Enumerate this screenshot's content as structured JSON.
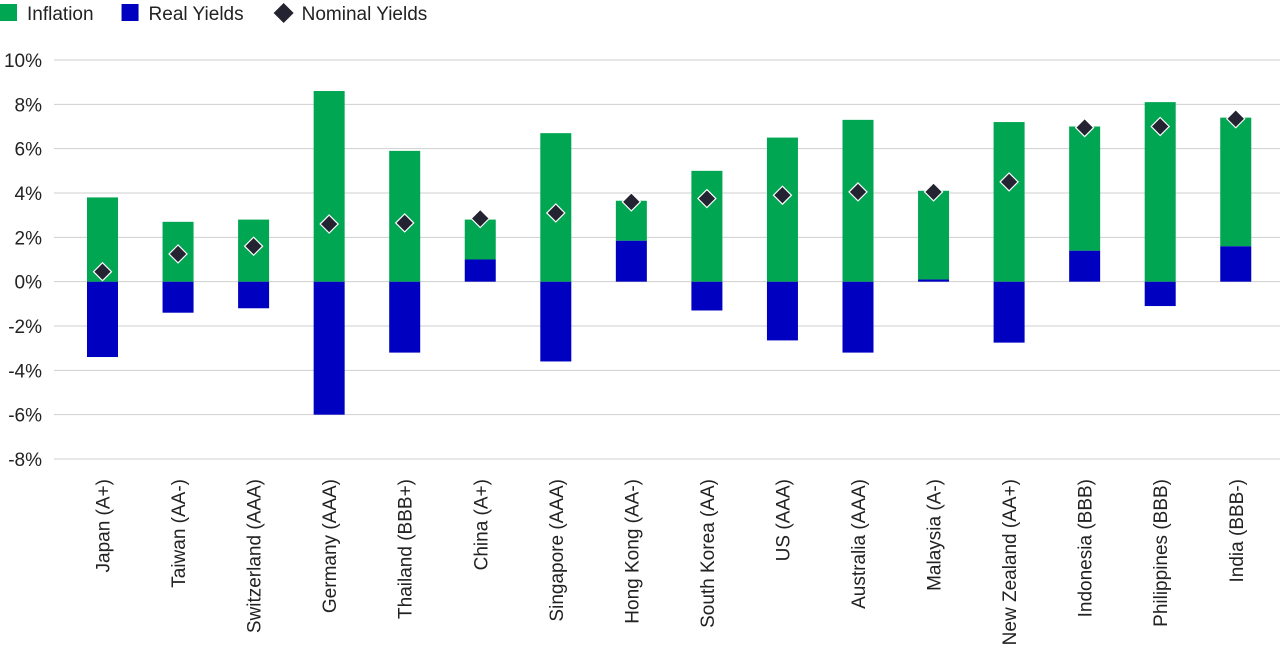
{
  "chart_data": {
    "type": "bar",
    "stacked": true,
    "categories": [
      "Japan (A+)",
      "Taiwan (AA-)",
      "Switzerland (AAA)",
      "Germany (AAA)",
      "Thailand (BBB+)",
      "China (A+)",
      "Singapore (AAA)",
      "Hong Kong (AA-)",
      "South Korea (AA)",
      "US (AAA)",
      "Australia (AAA)",
      "Malaysia (A-)",
      "New Zealand (AA+)",
      "Indonesia (BBB)",
      "Philippines (BBB)",
      "India (BBB-)"
    ],
    "series": [
      {
        "name": "Inflation",
        "type": "bar",
        "color": "#00a651",
        "values": [
          3.8,
          2.7,
          2.8,
          8.6,
          5.9,
          1.8,
          6.7,
          1.8,
          5.0,
          6.5,
          7.3,
          4.0,
          7.2,
          5.6,
          8.1,
          5.8
        ]
      },
      {
        "name": "Real Yields",
        "type": "bar",
        "color": "#0000c0",
        "values": [
          -3.4,
          -1.4,
          -1.2,
          -6.0,
          -3.2,
          1.0,
          -3.6,
          1.85,
          -1.3,
          -2.65,
          -3.2,
          0.1,
          -2.75,
          1.4,
          -1.1,
          1.6
        ]
      },
      {
        "name": "Nominal Yields",
        "type": "marker",
        "color": "#232331",
        "values": [
          0.45,
          1.25,
          1.6,
          2.6,
          2.65,
          2.85,
          3.1,
          3.6,
          3.75,
          3.9,
          4.05,
          4.05,
          4.5,
          6.95,
          7.0,
          7.35
        ]
      }
    ],
    "yticks": [
      "10%",
      "8%",
      "6%",
      "4%",
      "2%",
      "0%",
      "-2%",
      "-4%",
      "-6%",
      "-8%"
    ],
    "ylim": [
      -8,
      10
    ],
    "grid": true,
    "legend_position": "top-left",
    "title": "",
    "xlabel": "",
    "ylabel": ""
  }
}
